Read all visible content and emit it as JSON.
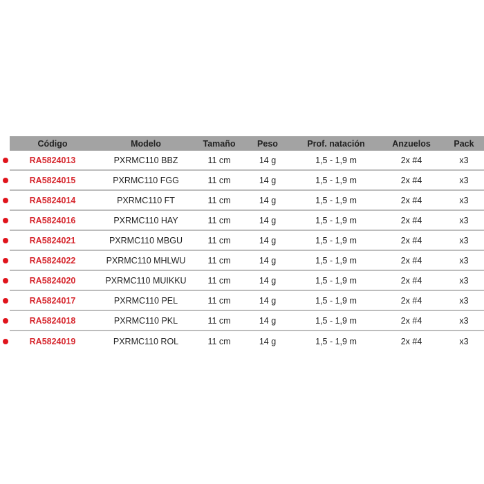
{
  "table": {
    "headers": [
      "Código",
      "Modelo",
      "Tamaño",
      "Peso",
      "Prof. natación",
      "Anzuelos",
      "Pack"
    ],
    "rows": [
      [
        "RA5824013",
        "PXRMC110 BBZ",
        "11 cm",
        "14 g",
        "1,5 - 1,9 m",
        "2x #4",
        "x3"
      ],
      [
        "RA5824015",
        "PXRMC110 FGG",
        "11 cm",
        "14 g",
        "1,5 - 1,9 m",
        "2x #4",
        "x3"
      ],
      [
        "RA5824014",
        "PXRMC110 FT",
        "11 cm",
        "14 g",
        "1,5 - 1,9 m",
        "2x #4",
        "x3"
      ],
      [
        "RA5824016",
        "PXRMC110 HAY",
        "11 cm",
        "14 g",
        "1,5 - 1,9 m",
        "2x #4",
        "x3"
      ],
      [
        "RA5824021",
        "PXRMC110 MBGU",
        "11 cm",
        "14 g",
        "1,5 - 1,9 m",
        "2x #4",
        "x3"
      ],
      [
        "RA5824022",
        "PXRMC110 MHLWU",
        "11 cm",
        "14 g",
        "1,5 - 1,9 m",
        "2x #4",
        "x3"
      ],
      [
        "RA5824020",
        "PXRMC110 MUIKKU",
        "11 cm",
        "14 g",
        "1,5 - 1,9 m",
        "2x #4",
        "x3"
      ],
      [
        "RA5824017",
        "PXRMC110 PEL",
        "11 cm",
        "14 g",
        "1,5 - 1,9 m",
        "2x #4",
        "x3"
      ],
      [
        "RA5824018",
        "PXRMC110 PKL",
        "11 cm",
        "14 g",
        "1,5 - 1,9 m",
        "2x #4",
        "x3"
      ],
      [
        "RA5824019",
        "PXRMC110 ROL",
        "11 cm",
        "14 g",
        "1,5 - 1,9 m",
        "2x #4",
        "x3"
      ]
    ]
  },
  "colors": {
    "header_bg": "#a3a3a3",
    "code_text": "#d6282f",
    "bullet": "#e0141c"
  }
}
